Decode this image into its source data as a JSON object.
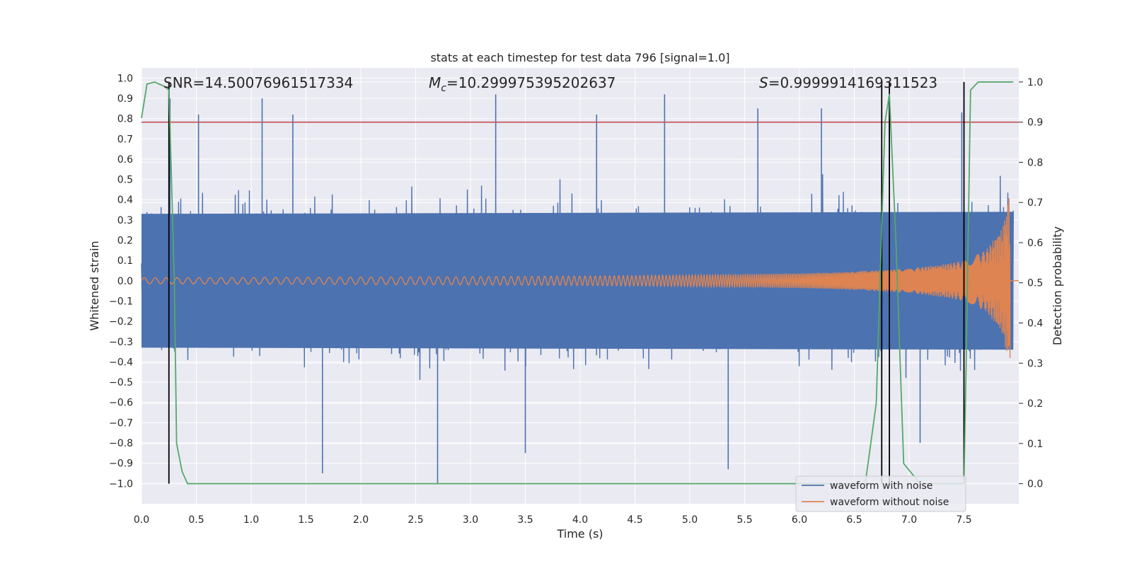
{
  "chart_data": {
    "type": "line",
    "title": "stats at each timestep for test data 796 [signal=1.0]",
    "xlabel": "Time (s)",
    "ylabel_left": "Whitened strain",
    "ylabel_right": "Detection probability",
    "xlim": [
      0.0,
      8.0
    ],
    "ylim_left": [
      -1.1,
      1.05
    ],
    "ylim_right": [
      -0.05,
      1.035
    ],
    "x_ticks": [
      "0.0",
      "0.5",
      "1.0",
      "1.5",
      "2.0",
      "2.5",
      "3.0",
      "3.5",
      "4.0",
      "4.5",
      "5.0",
      "5.5",
      "6.0",
      "6.5",
      "7.0",
      "7.5"
    ],
    "y_ticks_left": [
      "1.0",
      "0.9",
      "0.8",
      "0.7",
      "0.6",
      "0.5",
      "0.4",
      "0.3",
      "0.2",
      "0.1",
      "0.0",
      "−0.1",
      "−0.2",
      "−0.3",
      "−0.4",
      "−0.5",
      "−0.6",
      "−0.7",
      "−0.8",
      "−0.9",
      "−1.0"
    ],
    "y_ticks_right": [
      "1.0",
      "0.9",
      "0.8",
      "0.7",
      "0.6",
      "0.5",
      "0.4",
      "0.3",
      "0.2",
      "0.1",
      "0.0"
    ],
    "grid": true,
    "annotations": {
      "snr": "SNR=14.50076961517334",
      "mc_symbol": "M",
      "mc_subscript": "c",
      "mc_value": "=10.299975395202637",
      "s_symbol": "S",
      "s_value": "=0.9999914169311523"
    },
    "legend": {
      "placement": "lower-right",
      "entries": [
        "waveform with noise",
        "waveform without noise"
      ]
    },
    "colors": {
      "noise": "#4c72b0",
      "clean": "#dd8452",
      "probability": "#55a868",
      "threshold": "#c44e52",
      "markers": "#000000",
      "background": "#eaeaf2"
    },
    "threshold_probability": 0.9,
    "detection_markers_s": [
      0.25,
      6.75,
      6.82,
      7.5
    ],
    "probability_series": {
      "x": [
        0.0,
        0.05,
        0.12,
        0.2,
        0.25,
        0.3,
        0.32,
        0.37,
        0.42,
        1.5,
        6.6,
        6.7,
        6.78,
        6.82,
        6.88,
        6.95,
        7.1,
        7.5,
        7.52,
        7.56,
        7.63,
        7.7,
        7.75,
        7.95
      ],
      "y": [
        0.91,
        0.995,
        1.0,
        0.99,
        0.98,
        0.5,
        0.1,
        0.03,
        0.0,
        0.0,
        0.0,
        0.2,
        0.9,
        0.97,
        0.6,
        0.05,
        0.0,
        0.0,
        0.3,
        0.98,
        1.0,
        1.0,
        1.0,
        1.0
      ]
    },
    "noise_peaks": {
      "x": [
        0.26,
        0.52,
        1.1,
        1.38,
        1.65,
        2.7,
        3.23,
        3.5,
        4.15,
        4.77,
        5.35,
        5.62,
        6.2,
        6.82,
        7.1,
        7.48
      ],
      "y": [
        0.9,
        0.82,
        0.9,
        0.82,
        -0.95,
        -1.0,
        0.92,
        -0.85,
        0.82,
        0.92,
        -0.93,
        0.85,
        0.85,
        0.92,
        -0.8,
        0.83
      ]
    },
    "noise_envelope": {
      "x": [
        0.0,
        1.0,
        2.0,
        3.0,
        4.0,
        5.0,
        6.0,
        7.0,
        7.5,
        7.8,
        7.95
      ],
      "y": [
        0.33,
        0.33,
        0.33,
        0.33,
        0.33,
        0.33,
        0.34,
        0.34,
        0.35,
        0.36,
        0.36
      ]
    },
    "clean_envelope": {
      "x": [
        0.0,
        1.0,
        2.0,
        3.0,
        4.0,
        5.0,
        6.0,
        6.5,
        7.0,
        7.3,
        7.5,
        7.7,
        7.85,
        7.92,
        7.95
      ],
      "y": [
        0.015,
        0.016,
        0.018,
        0.02,
        0.023,
        0.028,
        0.036,
        0.045,
        0.06,
        0.08,
        0.1,
        0.15,
        0.26,
        0.43,
        0.0
      ]
    }
  }
}
